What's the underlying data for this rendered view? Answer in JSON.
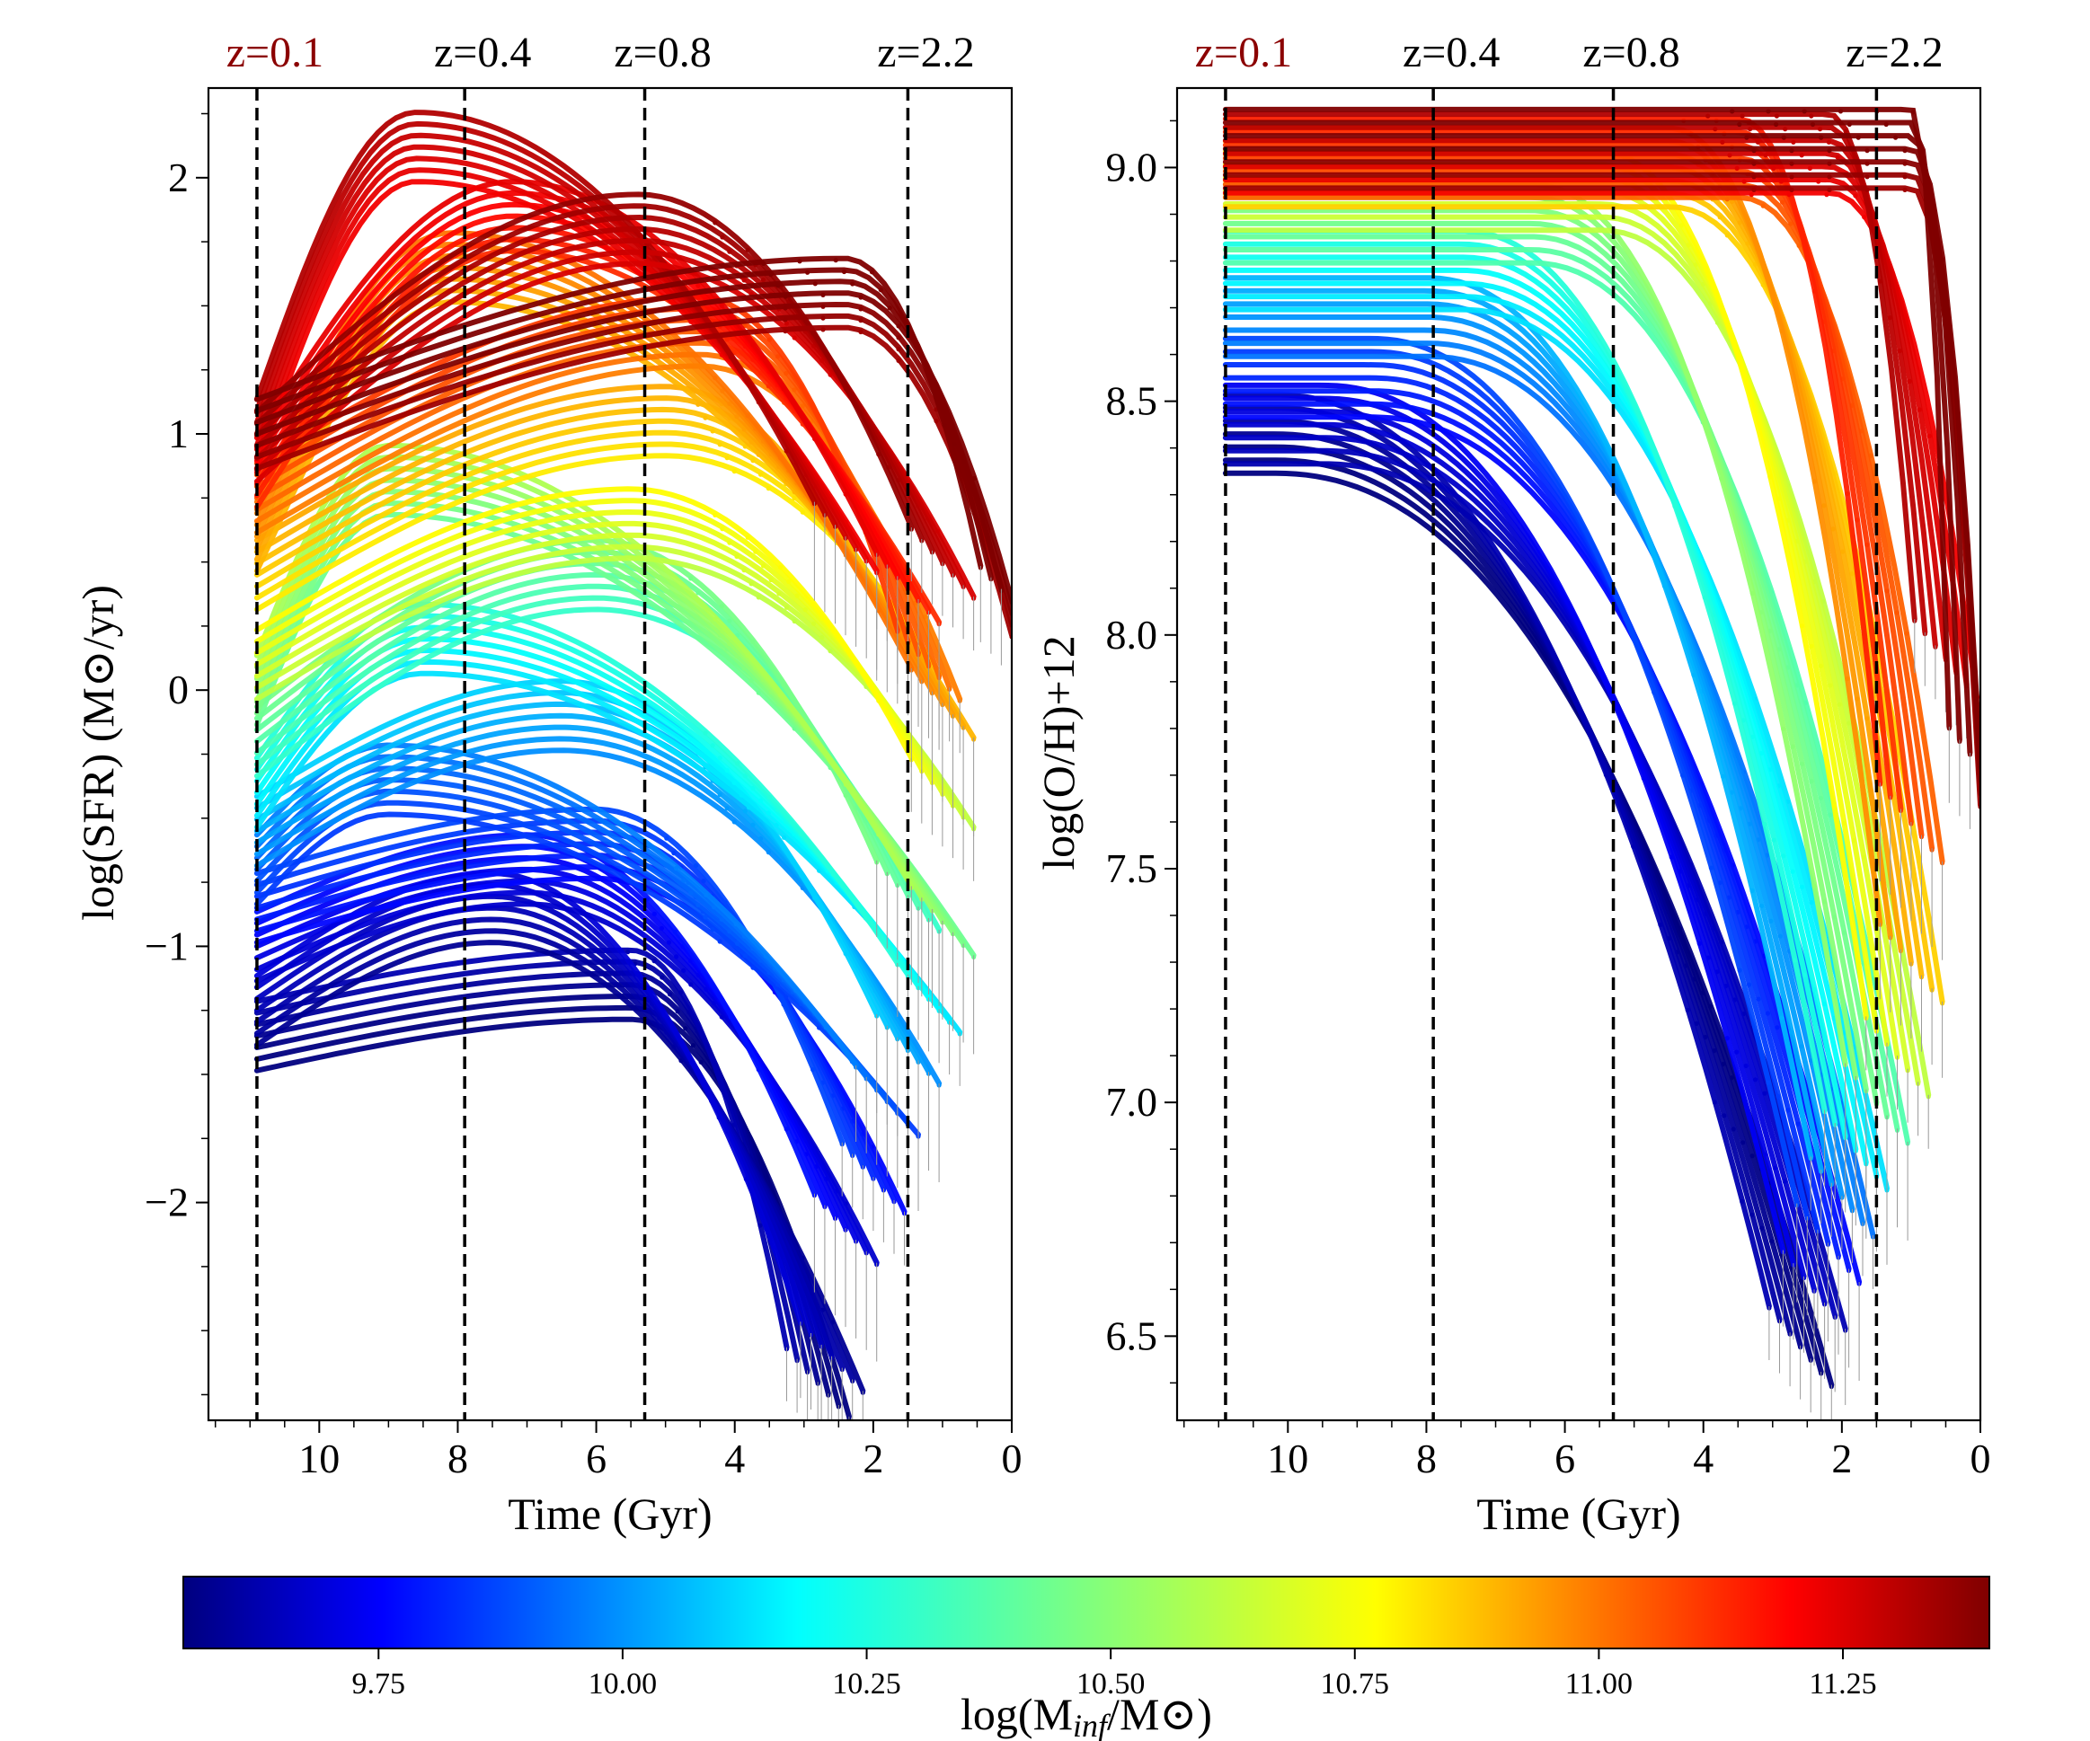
{
  "chart_data": [
    {
      "type": "scatter",
      "panel": "left",
      "title": "",
      "xlabel": "Time (Gyr)",
      "ylabel": "log(SFR) (M⊙/yr)",
      "xlim": [
        11.6,
        0
      ],
      "ylim": [
        -2.85,
        2.35
      ],
      "xticks": [
        10,
        8,
        6,
        4,
        2,
        0
      ],
      "xtick_labels": [
        "10",
        "8",
        "6",
        "4",
        "2",
        "0"
      ],
      "yticks": [
        2,
        1,
        0,
        -1,
        -2
      ],
      "ytick_labels": [
        "2",
        "1",
        "0",
        "−1",
        "−2"
      ],
      "redshift_markers": [
        {
          "label": "z=0.1",
          "time": 10.9,
          "color": "#8b0000"
        },
        {
          "label": "z=0.4",
          "time": 7.9,
          "color": "#000000"
        },
        {
          "label": "z=0.8",
          "time": 5.3,
          "color": "#000000"
        },
        {
          "label": "z=2.2",
          "time": 1.5,
          "color": "#000000"
        }
      ],
      "tracks": [
        {
          "logM": 11.4,
          "t_start": 10.9,
          "t_end": 0.0,
          "y_start": 1.0,
          "y_peak": 1.55,
          "t_peak": 2.4,
          "y_end": 0.35
        },
        {
          "logM": 11.3,
          "t_start": 10.9,
          "t_end": 1.0,
          "y_start": 0.95,
          "y_peak": 1.8,
          "t_peak": 5.4,
          "y_end": 0.5
        },
        {
          "logM": 11.25,
          "t_start": 10.9,
          "t_end": 2.4,
          "y_start": 1.0,
          "y_peak": 2.12,
          "t_peak": 8.6,
          "y_end": 0.6
        },
        {
          "logM": 11.15,
          "t_start": 10.9,
          "t_end": 1.5,
          "y_start": 0.85,
          "y_peak": 1.85,
          "t_peak": 7.2,
          "y_end": 0.4
        },
        {
          "logM": 11.0,
          "t_start": 10.9,
          "t_end": 1.2,
          "y_start": 0.75,
          "y_peak": 1.4,
          "t_peak": 4.5,
          "y_end": 0.1
        },
        {
          "logM": 10.9,
          "t_start": 10.9,
          "t_end": 1.0,
          "y_start": 0.6,
          "y_peak": 1.65,
          "t_peak": 8.1,
          "y_end": -0.05
        },
        {
          "logM": 10.8,
          "t_start": 10.9,
          "t_end": 1.5,
          "y_start": 0.45,
          "y_peak": 1.05,
          "t_peak": 5.0,
          "y_end": 0.2
        },
        {
          "logM": 10.65,
          "t_start": 10.9,
          "t_end": 1.0,
          "y_start": 0.1,
          "y_peak": 0.65,
          "t_peak": 5.5,
          "y_end": -0.4
        },
        {
          "logM": 10.5,
          "t_start": 10.9,
          "t_end": 1.0,
          "y_start": 0.0,
          "y_peak": 0.82,
          "t_peak": 9.0,
          "y_end": -0.9
        },
        {
          "logM": 10.4,
          "t_start": 10.9,
          "t_end": 1.5,
          "y_start": -0.2,
          "y_peak": 0.45,
          "t_peak": 6.0,
          "y_end": -0.8
        },
        {
          "logM": 10.25,
          "t_start": 10.9,
          "t_end": 1.2,
          "y_start": -0.4,
          "y_peak": 0.2,
          "t_peak": 8.5,
          "y_end": -1.2
        },
        {
          "logM": 10.1,
          "t_start": 10.9,
          "t_end": 1.5,
          "y_start": -0.55,
          "y_peak": -0.1,
          "t_peak": 6.5,
          "y_end": -1.4
        },
        {
          "logM": 9.95,
          "t_start": 10.9,
          "t_end": 1.8,
          "y_start": -0.7,
          "y_peak": -0.35,
          "t_peak": 9.0,
          "y_end": -1.6
        },
        {
          "logM": 9.85,
          "t_start": 10.9,
          "t_end": 2.0,
          "y_start": -0.85,
          "y_peak": -0.6,
          "t_peak": 6.0,
          "y_end": -1.9
        },
        {
          "logM": 9.75,
          "t_start": 10.9,
          "t_end": 2.4,
          "y_start": -1.0,
          "y_peak": -0.7,
          "t_peak": 7.0,
          "y_end": -2.1
        },
        {
          "logM": 9.65,
          "t_start": 10.9,
          "t_end": 2.6,
          "y_start": -1.25,
          "y_peak": -0.85,
          "t_peak": 7.5,
          "y_end": -2.6
        },
        {
          "logM": 9.58,
          "t_start": 10.9,
          "t_end": 2.8,
          "y_start": -1.35,
          "y_peak": -1.15,
          "t_peak": 5.5,
          "y_end": -2.7
        }
      ]
    },
    {
      "type": "scatter",
      "panel": "right",
      "title": "",
      "xlabel": "Time (Gyr)",
      "ylabel": "log(O/H)+12",
      "xlim": [
        11.6,
        0
      ],
      "ylim": [
        6.32,
        9.17
      ],
      "xticks": [
        10,
        8,
        6,
        4,
        2,
        0
      ],
      "xtick_labels": [
        "10",
        "8",
        "6",
        "4",
        "2",
        "0"
      ],
      "yticks": [
        9.0,
        8.5,
        8.0,
        7.5,
        7.0,
        6.5
      ],
      "ytick_labels": [
        "9.0",
        "8.5",
        "8.0",
        "7.5",
        "7.0",
        "6.5"
      ],
      "redshift_markers": [
        {
          "label": "z=0.1",
          "time": 10.9,
          "color": "#8b0000"
        },
        {
          "label": "z=0.4",
          "time": 7.9,
          "color": "#000000"
        },
        {
          "label": "z=0.8",
          "time": 5.3,
          "color": "#000000"
        },
        {
          "label": "z=2.2",
          "time": 1.5,
          "color": "#000000"
        }
      ],
      "tracks": [
        {
          "logM": 11.4,
          "t_start": 10.9,
          "t_end": 0.0,
          "y_plateau": 9.04,
          "t_knee": 1.0,
          "y_end": 7.72
        },
        {
          "logM": 11.25,
          "t_start": 10.9,
          "t_end": 0.5,
          "y_plateau": 9.03,
          "t_knee": 2.2,
          "y_end": 7.95
        },
        {
          "logM": 11.05,
          "t_start": 10.9,
          "t_end": 1.0,
          "y_plateau": 9.02,
          "t_knee": 3.5,
          "y_end": 7.6
        },
        {
          "logM": 10.85,
          "t_start": 10.9,
          "t_end": 1.0,
          "y_plateau": 9.0,
          "t_knee": 4.5,
          "y_end": 7.3
        },
        {
          "logM": 10.65,
          "t_start": 10.9,
          "t_end": 1.2,
          "y_plateau": 8.95,
          "t_knee": 5.5,
          "y_end": 7.1
        },
        {
          "logM": 10.45,
          "t_start": 10.9,
          "t_end": 1.5,
          "y_plateau": 8.88,
          "t_knee": 6.5,
          "y_end": 7.0
        },
        {
          "logM": 10.25,
          "t_start": 10.9,
          "t_end": 1.8,
          "y_plateau": 8.78,
          "t_knee": 7.5,
          "y_end": 6.9
        },
        {
          "logM": 10.05,
          "t_start": 10.9,
          "t_end": 2.0,
          "y_plateau": 8.68,
          "t_knee": 8.0,
          "y_end": 6.8
        },
        {
          "logM": 9.85,
          "t_start": 10.9,
          "t_end": 2.2,
          "y_plateau": 8.55,
          "t_knee": 8.8,
          "y_end": 6.7
        },
        {
          "logM": 9.7,
          "t_start": 10.9,
          "t_end": 2.4,
          "y_plateau": 8.45,
          "t_knee": 9.5,
          "y_end": 6.6
        },
        {
          "logM": 9.58,
          "t_start": 10.9,
          "t_end": 2.6,
          "y_plateau": 8.43,
          "t_knee": 10.2,
          "y_end": 6.48
        }
      ]
    }
  ],
  "colorbar": {
    "label": "log(M",
    "label_sub": "inf",
    "label_tail": "/M⊙)",
    "range": [
      9.55,
      11.4
    ],
    "ticks": [
      9.75,
      10.0,
      10.25,
      10.5,
      10.75,
      11.0,
      11.25
    ],
    "tick_labels": [
      "9.75",
      "10.00",
      "10.25",
      "10.50",
      "10.75",
      "11.00",
      "11.25"
    ],
    "colormap": "jet",
    "stops": [
      "#00007f",
      "#0000ff",
      "#007fff",
      "#00ffff",
      "#7fff7f",
      "#ffff00",
      "#ff7f00",
      "#ff0000",
      "#7f0000"
    ]
  }
}
